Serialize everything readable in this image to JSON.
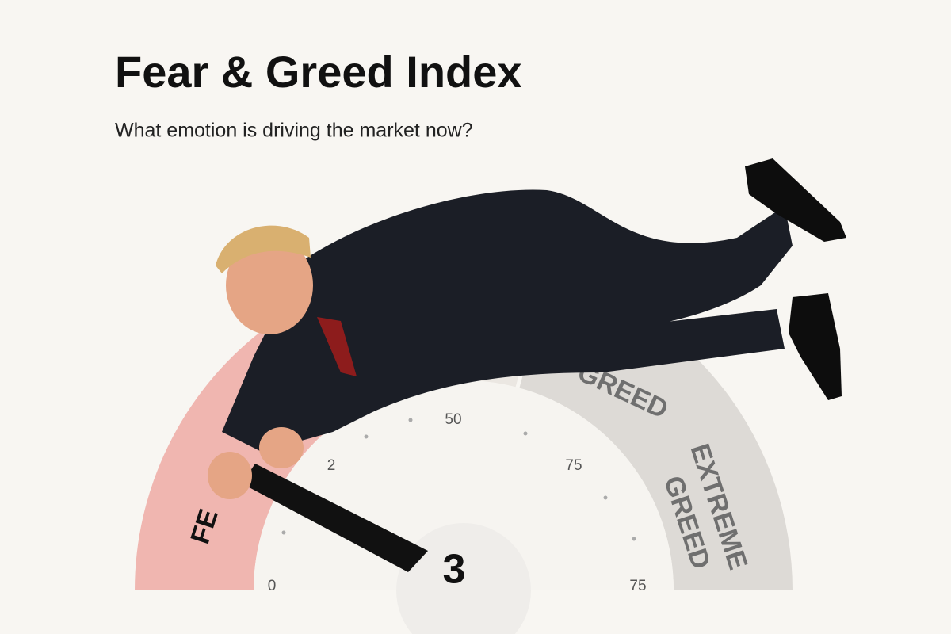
{
  "header": {
    "title": "Fear & Greed Index",
    "subtitle": "What emotion is driving the market now?"
  },
  "gauge": {
    "value": "3",
    "segments": {
      "fear": "FE",
      "greed": "GREED",
      "extreme_greed_1": "EXTREME",
      "extreme_greed_2": "GREED"
    },
    "tick_labels": [
      "0",
      "2",
      "50",
      "75",
      "75"
    ]
  }
}
